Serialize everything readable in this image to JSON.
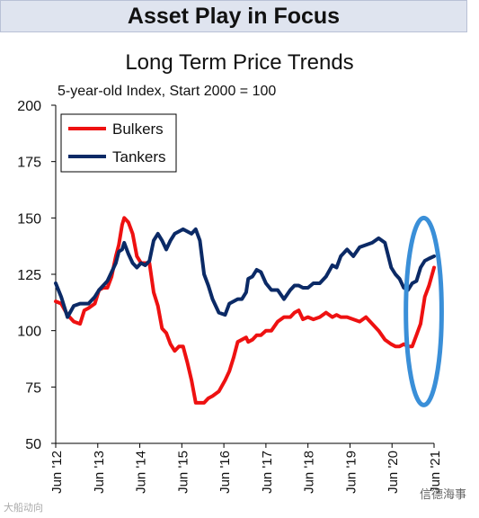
{
  "banner": {
    "text": "Asset Play in Focus"
  },
  "watermark": {
    "left": "大船动向",
    "right": "信德海事"
  },
  "colors": {
    "bulkers": "#ee1111",
    "tankers": "#0b2a66",
    "highlight": "#3a8fd8",
    "banner_bg": "#dfe4ef"
  },
  "chart_data": {
    "type": "line",
    "title": "Long Term Price Trends",
    "subtitle": "5-year-old Index, Start 2000 = 100",
    "xlabel": "",
    "ylabel": "",
    "ylim": [
      50,
      200
    ],
    "yticks": [
      50,
      75,
      100,
      125,
      150,
      175,
      200
    ],
    "xlim": [
      2012.42,
      2021.42
    ],
    "xticks": [
      {
        "value": 2012.42,
        "label": "Jun '12"
      },
      {
        "value": 2013.42,
        "label": "Jun '13"
      },
      {
        "value": 2014.42,
        "label": "Jun '14"
      },
      {
        "value": 2015.42,
        "label": "Jun '15"
      },
      {
        "value": 2016.42,
        "label": "Jun '16"
      },
      {
        "value": 2017.42,
        "label": "Jun '17"
      },
      {
        "value": 2018.42,
        "label": "Jun '18"
      },
      {
        "value": 2019.42,
        "label": "Jun '19"
      },
      {
        "value": 2020.42,
        "label": "Jun '20"
      },
      {
        "value": 2021.42,
        "label": "Jun '21"
      }
    ],
    "legend_position": "top-left",
    "grid": false,
    "annotation": {
      "shape": "ellipse",
      "x_range": [
        2020.75,
        2021.6
      ],
      "y_range": [
        67,
        150
      ]
    },
    "series": [
      {
        "name": "Bulkers",
        "x": [
          2012.42,
          2012.55,
          2012.7,
          2012.85,
          2013.0,
          2013.1,
          2013.2,
          2013.35,
          2013.45,
          2013.55,
          2013.65,
          2013.75,
          2013.85,
          2013.92,
          2014.0,
          2014.05,
          2014.15,
          2014.25,
          2014.35,
          2014.45,
          2014.55,
          2014.65,
          2014.75,
          2014.85,
          2014.95,
          2015.05,
          2015.15,
          2015.25,
          2015.35,
          2015.45,
          2015.55,
          2015.65,
          2015.75,
          2015.85,
          2015.95,
          2016.05,
          2016.15,
          2016.3,
          2016.45,
          2016.55,
          2016.65,
          2016.75,
          2016.85,
          2016.95,
          2017.0,
          2017.1,
          2017.2,
          2017.3,
          2017.42,
          2017.55,
          2017.7,
          2017.85,
          2018.0,
          2018.1,
          2018.2,
          2018.3,
          2018.42,
          2018.55,
          2018.7,
          2018.85,
          2019.0,
          2019.1,
          2019.2,
          2019.35,
          2019.5,
          2019.65,
          2019.8,
          2019.95,
          2020.1,
          2020.25,
          2020.4,
          2020.5,
          2020.6,
          2020.7,
          2020.8,
          2020.9,
          2021.0,
          2021.1,
          2021.2,
          2021.3,
          2021.42
        ],
        "values": [
          113,
          112,
          107,
          104,
          103,
          109,
          110,
          112,
          118,
          119,
          119,
          124,
          133,
          138,
          147,
          150,
          148,
          143,
          133,
          130,
          130,
          130,
          117,
          111,
          101,
          99,
          94,
          91,
          93,
          93,
          86,
          78,
          68,
          68,
          68,
          70,
          71,
          73,
          78,
          82,
          88,
          95,
          96,
          97,
          95,
          96,
          98,
          98,
          100,
          100,
          104,
          106,
          106,
          108,
          109,
          105,
          106,
          105,
          106,
          108,
          106,
          107,
          106,
          106,
          105,
          104,
          106,
          103,
          100,
          96,
          94,
          93,
          93,
          94,
          93,
          93,
          98,
          103,
          115,
          120,
          128
        ]
      },
      {
        "name": "Tankers",
        "x": [
          2012.42,
          2012.55,
          2012.7,
          2012.85,
          2013.0,
          2013.1,
          2013.2,
          2013.35,
          2013.45,
          2013.55,
          2013.65,
          2013.75,
          2013.85,
          2013.92,
          2014.0,
          2014.05,
          2014.15,
          2014.25,
          2014.35,
          2014.45,
          2014.55,
          2014.65,
          2014.75,
          2014.85,
          2014.95,
          2015.05,
          2015.15,
          2015.25,
          2015.35,
          2015.45,
          2015.55,
          2015.65,
          2015.75,
          2015.85,
          2015.95,
          2016.05,
          2016.15,
          2016.3,
          2016.45,
          2016.55,
          2016.65,
          2016.75,
          2016.85,
          2016.95,
          2017.0,
          2017.1,
          2017.2,
          2017.3,
          2017.42,
          2017.55,
          2017.7,
          2017.85,
          2018.0,
          2018.1,
          2018.2,
          2018.3,
          2018.42,
          2018.55,
          2018.7,
          2018.85,
          2019.0,
          2019.1,
          2019.2,
          2019.35,
          2019.5,
          2019.65,
          2019.8,
          2019.95,
          2020.1,
          2020.25,
          2020.4,
          2020.5,
          2020.6,
          2020.7,
          2020.8,
          2020.9,
          2021.0,
          2021.1,
          2021.2,
          2021.3,
          2021.42
        ],
        "values": [
          121,
          115,
          106,
          111,
          112,
          112,
          112,
          115,
          118,
          120,
          122,
          126,
          130,
          135,
          136,
          139,
          134,
          130,
          128,
          130,
          129,
          131,
          140,
          143,
          140,
          136,
          140,
          143,
          144,
          145,
          144,
          143,
          145,
          140,
          125,
          120,
          114,
          108,
          107,
          112,
          113,
          114,
          114,
          117,
          123,
          124,
          127,
          126,
          121,
          118,
          118,
          114,
          118,
          120,
          120,
          119,
          119,
          121,
          121,
          124,
          129,
          128,
          133,
          136,
          133,
          137,
          138,
          139,
          141,
          139,
          128,
          125,
          123,
          119,
          118,
          121,
          122,
          128,
          131,
          132,
          133
        ]
      }
    ]
  }
}
